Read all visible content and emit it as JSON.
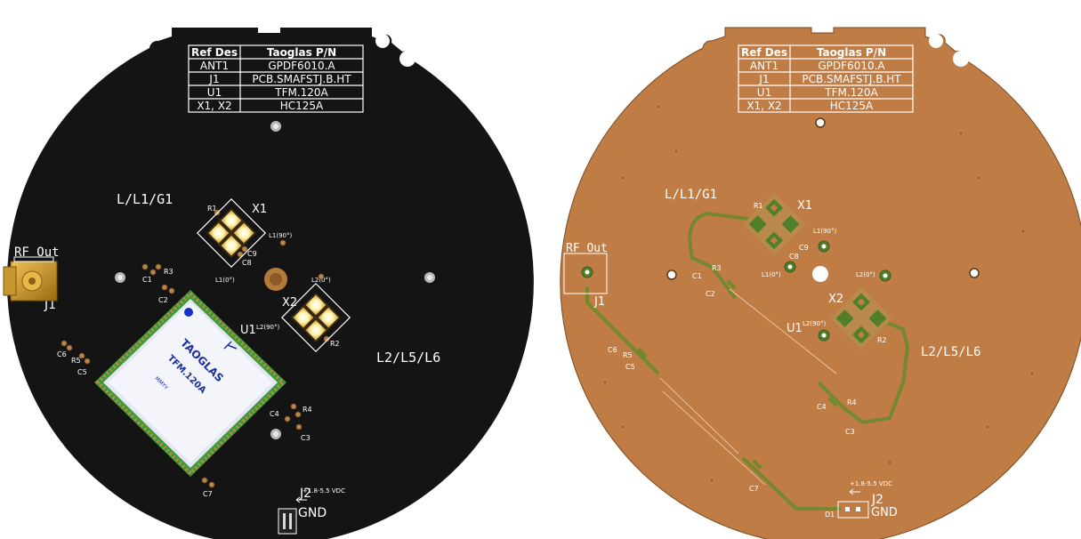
{
  "bom": {
    "headers": [
      "Ref Des",
      "Taoglas P/N"
    ],
    "rows": [
      [
        "ANT1",
        "GPDF6010.A"
      ],
      [
        "J1",
        "PCB.SMAFSTJ.B.HT"
      ],
      [
        "U1",
        "TFM.120A"
      ],
      [
        "X1, X2",
        "HC125A"
      ]
    ]
  },
  "labels": {
    "l_l1_g1": "L/L1/G1",
    "l2_l5_l6": "L2/L5/L6",
    "rf_out": "RF Out",
    "j1": "J1",
    "j2": "J2",
    "gnd": "GND",
    "vdc": "+1.8-5.5 VDC",
    "x1": "X1",
    "x2": "X2",
    "u1": "U1",
    "r1": "R1",
    "r2": "R2",
    "r3": "R3",
    "r4": "R4",
    "r5": "R5",
    "c1": "C1",
    "c2": "C2",
    "c3": "C3",
    "c4": "C4",
    "c5": "C5",
    "c6": "C6",
    "c7": "C7",
    "c8": "C8",
    "c9": "C9",
    "d1": "D1",
    "l1_90": "L1(90°)",
    "l1_0": "L1(0°)",
    "l2_0": "L2(0°)",
    "l2_90": "L2(90°)"
  },
  "module": {
    "brand": "TAOGLAS",
    "part": "TFM.120A",
    "date": "MMYY"
  },
  "colors": {
    "mask_black": "#141414",
    "copper": "#c07c45",
    "silk": "#ffffff",
    "pad_gold": "#d8a53a",
    "pad_green": "#5a8a2f"
  }
}
